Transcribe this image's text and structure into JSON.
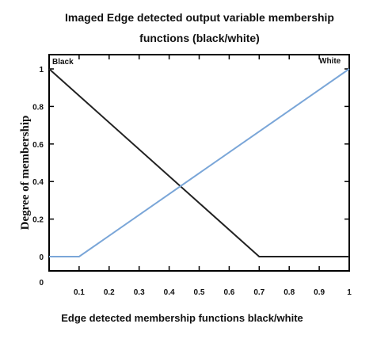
{
  "chart_data": {
    "type": "line",
    "title_line1": "Imaged Edge detected output  variable membership",
    "title_line2": "functions (black/white)",
    "xlabel": "Edge detected membership functions  black/white",
    "ylabel": "Degree of membership",
    "xlim": [
      0,
      1
    ],
    "ylim": [
      0,
      1
    ],
    "x_ticks": [
      "0.1",
      "0.2",
      "0.3",
      "0.4",
      "0.5",
      "0.6",
      "0.7",
      "0.8",
      "0.9",
      "1"
    ],
    "y_ticks": [
      "0",
      "0.2",
      "0.4",
      "0.6",
      "0.8",
      "1"
    ],
    "y_zero_label": "0",
    "grid": false,
    "series": [
      {
        "name": "Black",
        "color": "#222222",
        "x": [
          0,
          0.7,
          1
        ],
        "y": [
          1,
          0,
          0
        ]
      },
      {
        "name": "White",
        "color": "#7aa6d8",
        "x": [
          0,
          0.1,
          1
        ],
        "y": [
          0,
          0,
          1
        ]
      }
    ]
  }
}
